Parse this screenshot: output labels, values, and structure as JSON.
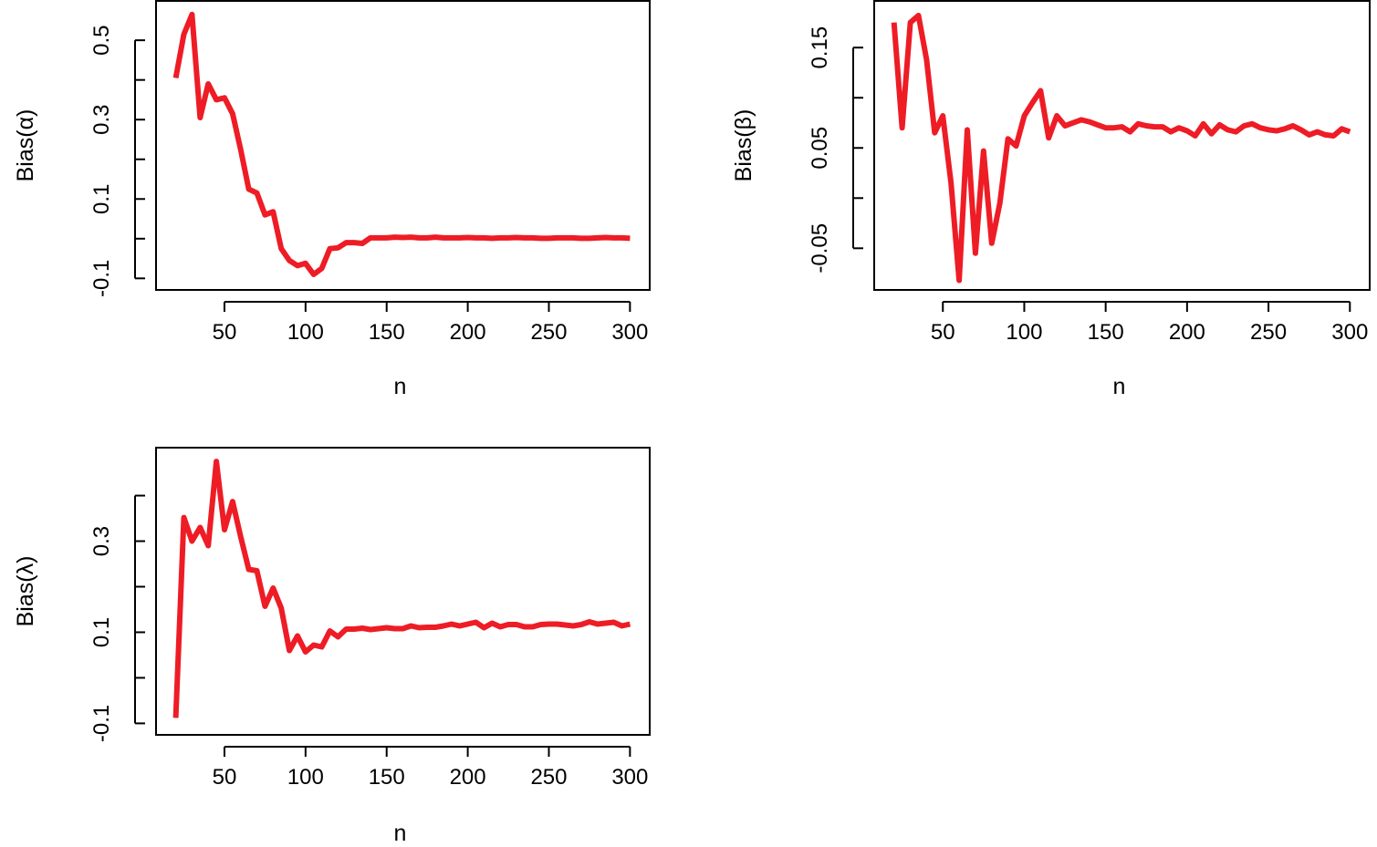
{
  "colors": {
    "line": "#ee1c25",
    "axis": "#000000",
    "background": "#ffffff"
  },
  "chart_data": [
    {
      "type": "line",
      "title": "",
      "xlabel": "n",
      "ylabel": "Bias(α)",
      "xlim": [
        20,
        300
      ],
      "ylim": [
        -0.1,
        0.57
      ],
      "xticks": [
        50,
        100,
        150,
        200,
        250,
        300
      ],
      "xtick_labels": [
        "50",
        "100",
        "150",
        "200",
        "250",
        "300"
      ],
      "yticks": [
        -0.1,
        0.0,
        0.1,
        0.2,
        0.3,
        0.4,
        0.5
      ],
      "ytick_labels": [
        "-0.1",
        "",
        "0.1",
        "",
        "0.3",
        "",
        "0.5"
      ],
      "grid": false,
      "series": [
        {
          "x": [
            20,
            25,
            30,
            35,
            40,
            45,
            50,
            55,
            60,
            65,
            70,
            75,
            80,
            85,
            90,
            95,
            100,
            105,
            110,
            115,
            120,
            125,
            130,
            135,
            140,
            145,
            150,
            155,
            160,
            165,
            170,
            175,
            180,
            185,
            190,
            195,
            200,
            205,
            210,
            215,
            220,
            225,
            230,
            235,
            240,
            245,
            250,
            255,
            260,
            265,
            270,
            275,
            280,
            285,
            290,
            295,
            300
          ],
          "y": [
            0.405,
            0.515,
            0.565,
            0.305,
            0.39,
            0.35,
            0.355,
            0.315,
            0.225,
            0.125,
            0.115,
            0.06,
            0.068,
            -0.025,
            -0.055,
            -0.068,
            -0.062,
            -0.09,
            -0.075,
            -0.025,
            -0.023,
            -0.01,
            -0.01,
            -0.012,
            0.002,
            0.002,
            0.002,
            0.004,
            0.003,
            0.004,
            0.002,
            0.002,
            0.004,
            0.002,
            0.002,
            0.002,
            0.003,
            0.002,
            0.002,
            0.001,
            0.002,
            0.002,
            0.003,
            0.002,
            0.002,
            0.001,
            0.001,
            0.002,
            0.002,
            0.002,
            0.001,
            0.001,
            0.002,
            0.003,
            0.002,
            0.002,
            0.001
          ]
        }
      ]
    },
    {
      "type": "line",
      "title": "",
      "xlabel": "n",
      "ylabel": "Bias(β)",
      "xlim": [
        20,
        300
      ],
      "ylim": [
        -0.08,
        0.185
      ],
      "xticks": [
        50,
        100,
        150,
        200,
        250,
        300
      ],
      "xtick_labels": [
        "50",
        "100",
        "150",
        "200",
        "250",
        "300"
      ],
      "yticks": [
        -0.05,
        0.0,
        0.05,
        0.1,
        0.15
      ],
      "ytick_labels": [
        "-0.05",
        "",
        "0.05",
        "",
        "0.15"
      ],
      "grid": false,
      "series": [
        {
          "x": [
            20,
            25,
            30,
            35,
            40,
            45,
            50,
            55,
            60,
            65,
            70,
            75,
            80,
            85,
            90,
            95,
            100,
            105,
            110,
            115,
            120,
            125,
            130,
            135,
            140,
            145,
            150,
            155,
            160,
            165,
            170,
            175,
            180,
            185,
            190,
            195,
            200,
            205,
            210,
            215,
            220,
            225,
            230,
            235,
            240,
            245,
            250,
            255,
            260,
            265,
            270,
            275,
            280,
            285,
            290,
            295,
            300
          ],
          "y": [
            0.175,
            0.07,
            0.175,
            0.182,
            0.138,
            0.065,
            0.082,
            0.015,
            -0.082,
            0.068,
            -0.055,
            0.047,
            -0.045,
            -0.005,
            0.059,
            0.052,
            0.082,
            0.095,
            0.107,
            0.06,
            0.082,
            0.072,
            0.075,
            0.078,
            0.076,
            0.073,
            0.07,
            0.07,
            0.071,
            0.066,
            0.074,
            0.072,
            0.071,
            0.071,
            0.066,
            0.07,
            0.067,
            0.062,
            0.074,
            0.064,
            0.073,
            0.068,
            0.066,
            0.072,
            0.074,
            0.07,
            0.068,
            0.067,
            0.069,
            0.072,
            0.068,
            0.063,
            0.066,
            0.063,
            0.062,
            0.069,
            0.066
          ]
        }
      ]
    },
    {
      "type": "line",
      "title": "",
      "xlabel": "n",
      "ylabel": "Bias(λ)",
      "xlim": [
        20,
        300
      ],
      "ylim": [
        -0.1,
        0.48
      ],
      "xticks": [
        50,
        100,
        150,
        200,
        250,
        300
      ],
      "xtick_labels": [
        "50",
        "100",
        "150",
        "200",
        "250",
        "300"
      ],
      "yticks": [
        -0.1,
        0.0,
        0.1,
        0.2,
        0.3,
        0.4
      ],
      "ytick_labels": [
        "-0.1",
        "",
        "0.1",
        "",
        "0.3",
        ""
      ],
      "grid": false,
      "series": [
        {
          "x": [
            20,
            25,
            30,
            35,
            40,
            45,
            50,
            55,
            60,
            65,
            70,
            75,
            80,
            85,
            90,
            95,
            100,
            105,
            110,
            115,
            120,
            125,
            130,
            135,
            140,
            145,
            150,
            155,
            160,
            165,
            170,
            175,
            180,
            185,
            190,
            195,
            200,
            205,
            210,
            215,
            220,
            225,
            230,
            235,
            240,
            245,
            250,
            255,
            260,
            265,
            270,
            275,
            280,
            285,
            290,
            295,
            300
          ],
          "y": [
            -0.088,
            0.352,
            0.3,
            0.33,
            0.29,
            0.475,
            0.325,
            0.387,
            0.31,
            0.238,
            0.235,
            0.157,
            0.197,
            0.153,
            0.06,
            0.092,
            0.057,
            0.072,
            0.068,
            0.103,
            0.09,
            0.107,
            0.107,
            0.109,
            0.106,
            0.108,
            0.11,
            0.108,
            0.108,
            0.114,
            0.11,
            0.111,
            0.111,
            0.114,
            0.118,
            0.114,
            0.118,
            0.122,
            0.11,
            0.12,
            0.112,
            0.117,
            0.117,
            0.112,
            0.112,
            0.117,
            0.118,
            0.118,
            0.116,
            0.114,
            0.117,
            0.123,
            0.118,
            0.12,
            0.122,
            0.114,
            0.118
          ]
        }
      ]
    }
  ]
}
